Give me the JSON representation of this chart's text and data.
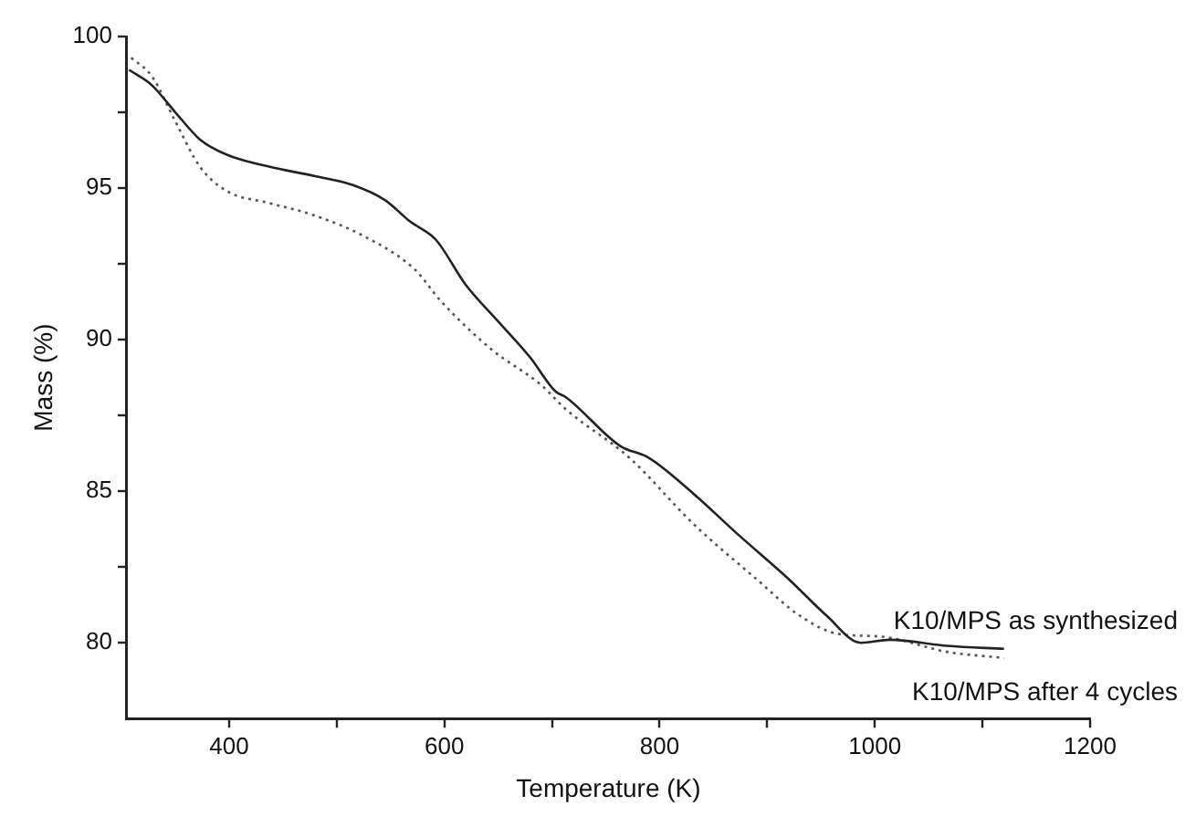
{
  "chart_data": {
    "type": "line",
    "xlabel": "Temperature (K)",
    "ylabel": "Mass (%)",
    "legend": false,
    "marker": "none",
    "xlim": [
      305,
      1200
    ],
    "ylim": [
      77.5,
      100
    ],
    "xticks": [
      400,
      {
        "value": 500,
        "label": null
      },
      600,
      {
        "value": 700,
        "label": null
      },
      800,
      {
        "value": 900,
        "label": null
      },
      1000,
      {
        "value": 1100,
        "label": null
      },
      1200
    ],
    "yticks": [
      80,
      {
        "value": 82.5,
        "label": null
      },
      85,
      {
        "value": 87.5,
        "label": null
      },
      90,
      {
        "value": 92.5,
        "label": null
      },
      95,
      {
        "value": 97.5,
        "label": null
      },
      100
    ],
    "series": [
      {
        "name": "K10/MPS as synthesized",
        "color": "#222222",
        "line_style": "solid",
        "x": [
          307,
          328,
          350,
          373,
          398,
          438,
          479,
          515,
          545,
          568,
          592,
          620,
          650,
          680,
          703,
          713,
          763,
          790,
          832,
          872,
          920,
          955,
          987,
          1014,
          1067,
          1120
        ],
        "values": [
          98.9,
          98.4,
          97.5,
          96.6,
          96.1,
          95.7,
          95.4,
          95.1,
          94.6,
          93.9,
          93.3,
          91.8,
          90.6,
          89.4,
          88.3,
          88.1,
          86.5,
          86.1,
          84.9,
          83.6,
          82.1,
          80.9,
          80.0,
          80.1,
          79.9,
          79.8
        ]
      },
      {
        "name": "K10/MPS after 4 cycles",
        "color": "#555555",
        "line_style": "dotted",
        "x": [
          309,
          328,
          350,
          373,
          398,
          438,
          479,
          526,
          573,
          596,
          643,
          690,
          713,
          772,
          832,
          890,
          930,
          965,
          1007,
          1067,
          1120
        ],
        "values": [
          99.3,
          98.7,
          97.2,
          95.7,
          94.9,
          94.5,
          94.1,
          93.4,
          92.3,
          91.3,
          89.7,
          88.5,
          87.7,
          86.1,
          83.9,
          82.1,
          80.9,
          80.3,
          80.2,
          79.7,
          79.5
        ]
      }
    ]
  }
}
